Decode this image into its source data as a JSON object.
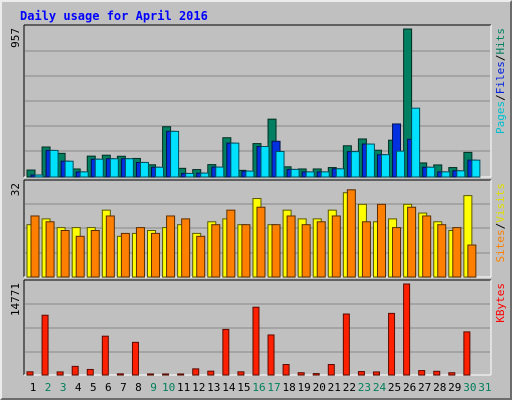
{
  "chart_data": [
    {
      "type": "bar",
      "title": "Daily usage for April 2016",
      "panel": "top",
      "ymax_label": "957",
      "right_labels": [
        {
          "text": "Pages",
          "color": "#00c0d0"
        },
        {
          "text": "/",
          "color": "#000000"
        },
        {
          "text": "Files",
          "color": "#0020e0"
        },
        {
          "text": "/",
          "color": "#000000"
        },
        {
          "text": "Hits",
          "color": "#00805c"
        }
      ],
      "ylim": [
        0,
        957
      ],
      "categories": [
        "1",
        "2",
        "3",
        "4",
        "5",
        "6",
        "7",
        "8",
        "9",
        "10",
        "11",
        "12",
        "13",
        "14",
        "15",
        "16",
        "17",
        "18",
        "19",
        "20",
        "21",
        "22",
        "23",
        "24",
        "25",
        "26",
        "27",
        "28",
        "29",
        "30"
      ],
      "series": [
        {
          "name": "Hits",
          "color": "#008060",
          "values": [
            45,
            194,
            153,
            52,
            135,
            141,
            134,
            120,
            79,
            325,
            56,
            48,
            80,
            254,
            43,
            216,
            374,
            66,
            52,
            52,
            61,
            202,
            246,
            173,
            238,
            957,
            91,
            78,
            61,
            159
          ]
        },
        {
          "name": "Files",
          "color": "#0030e0",
          "values": [
            13,
            172,
            102,
            33,
            115,
            118,
            118,
            94,
            63,
            295,
            23,
            25,
            64,
            219,
            38,
            197,
            231,
            49,
            33,
            33,
            53,
            164,
            213,
            144,
            343,
            244,
            63,
            33,
            40,
            109
          ]
        },
        {
          "name": "Pages",
          "color": "#00e0ff",
          "values": [
            13,
            172,
            102,
            33,
            115,
            118,
            118,
            94,
            63,
            295,
            23,
            25,
            64,
            219,
            38,
            197,
            165,
            49,
            33,
            33,
            53,
            164,
            213,
            144,
            167,
            445,
            63,
            33,
            40,
            109
          ]
        }
      ]
    },
    {
      "type": "bar",
      "panel": "middle",
      "ymax_label": "32",
      "right_labels": [
        {
          "text": "Sites",
          "color": "#ff8000"
        },
        {
          "text": "/",
          "color": "#000000"
        },
        {
          "text": "Visits",
          "color": "#e0e000"
        }
      ],
      "ylim": [
        0,
        32
      ],
      "categories": [
        "1",
        "2",
        "3",
        "4",
        "5",
        "6",
        "7",
        "8",
        "9",
        "10",
        "11",
        "12",
        "13",
        "14",
        "15",
        "16",
        "17",
        "18",
        "19",
        "20",
        "21",
        "22",
        "23",
        "24",
        "25",
        "26",
        "27",
        "28",
        "29",
        "30"
      ],
      "series": [
        {
          "name": "Visits",
          "color": "#ffff00",
          "values": [
            18,
            20,
            17,
            17,
            17,
            23,
            14,
            15,
            16,
            17,
            18,
            15,
            19,
            20,
            18,
            27,
            18,
            23,
            20,
            20,
            23,
            29,
            25,
            19,
            20,
            25,
            22,
            19,
            16,
            28
          ]
        },
        {
          "name": "Sites",
          "color": "#ff8000",
          "values": [
            21,
            19,
            16,
            14,
            16,
            21,
            15,
            17,
            15,
            21,
            20,
            14,
            18,
            23,
            18,
            24,
            18,
            21,
            18,
            19,
            21,
            30,
            19,
            25,
            17,
            24,
            21,
            18,
            17,
            11
          ]
        }
      ]
    },
    {
      "type": "bar",
      "panel": "bottom",
      "ymax_label": "14771",
      "right_labels": [
        {
          "text": "KBytes",
          "color": "#ff0000"
        }
      ],
      "ylim": [
        0,
        14771
      ],
      "categories": [
        "1",
        "2",
        "3",
        "4",
        "5",
        "6",
        "7",
        "8",
        "9",
        "10",
        "11",
        "12",
        "13",
        "14",
        "15",
        "16",
        "17",
        "18",
        "19",
        "20",
        "21",
        "22",
        "23",
        "24",
        "25",
        "26",
        "27",
        "28",
        "29",
        "30"
      ],
      "series": [
        {
          "name": "KBytes",
          "color": "#ff2000",
          "values": [
            520,
            9700,
            500,
            1400,
            900,
            6300,
            190,
            5300,
            170,
            170,
            170,
            1000,
            620,
            7400,
            520,
            11000,
            6500,
            1700,
            370,
            230,
            1700,
            9900,
            560,
            500,
            10000,
            14771,
            720,
            600,
            370,
            7000
          ]
        }
      ]
    }
  ],
  "day_labels": [
    "1",
    "2",
    "3",
    "4",
    "5",
    "6",
    "7",
    "8",
    "9",
    "10",
    "11",
    "12",
    "13",
    "14",
    "15",
    "16",
    "17",
    "18",
    "19",
    "20",
    "21",
    "22",
    "23",
    "24",
    "25",
    "26",
    "27",
    "28",
    "29",
    "30",
    "31"
  ],
  "weekend_days": [
    2,
    3,
    9,
    10,
    16,
    17,
    23,
    24,
    30,
    31
  ],
  "colors": {
    "weekday_label": "#000000",
    "weekend_label": "#00805c",
    "title": "#0000ff",
    "panel_bg": "#c0c0c0",
    "grid": "#888888"
  }
}
